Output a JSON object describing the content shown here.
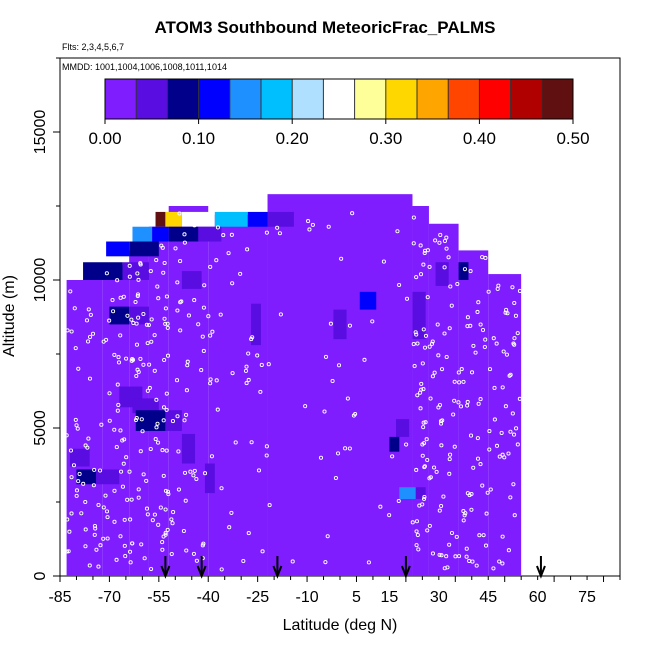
{
  "chart_data": {
    "type": "heatmap",
    "title": "ATOM3 Southbound MeteoricFrac_PALMS",
    "subtitle": "Flts: 2,3,4,5,6,7",
    "annotation": "MMDD: 1001,1004,1006,1008,1011,1014",
    "xlabel": "Latitude (deg N)",
    "ylabel": "Altitude (m)",
    "xlim": [
      -85,
      85
    ],
    "ylim": [
      0,
      17500
    ],
    "x_tick_labels": [
      "-85",
      "-70",
      "-55",
      "-40",
      "-25",
      "-10",
      "5",
      "15",
      "30",
      "45",
      "60",
      "75"
    ],
    "x_tick_values": [
      -85,
      -70,
      -55,
      -40,
      -25,
      -10,
      5,
      15,
      30,
      45,
      60,
      75
    ],
    "y_tick_labels": [
      "0",
      "5000",
      "10000",
      "15000"
    ],
    "y_tick_values": [
      0,
      5000,
      10000,
      15000
    ],
    "colorbar": {
      "range": [
        0,
        0.5
      ],
      "tick_labels": [
        "0.00",
        "0.10",
        "0.20",
        "0.30",
        "0.40",
        "0.50"
      ],
      "tick_values": [
        0,
        0.1,
        0.2,
        0.3,
        0.4,
        0.5
      ],
      "colors": [
        "#7f1dff",
        "#5a0de0",
        "#00008b",
        "#0000ff",
        "#1e90ff",
        "#00bfff",
        "#b0e0ff",
        "#ffffff",
        "#ffff99",
        "#ffd700",
        "#ffa500",
        "#ff4500",
        "#ff0000",
        "#b00000",
        "#601010"
      ]
    },
    "background_value": 0.01,
    "coverage": [
      {
        "lat": [
          -83,
          -72
        ],
        "alt": [
          0,
          10000
        ]
      },
      {
        "lat": [
          -72,
          -64
        ],
        "alt": [
          0,
          10500
        ]
      },
      {
        "lat": [
          -64,
          -58
        ],
        "alt": [
          0,
          11000
        ]
      },
      {
        "lat": [
          -58,
          -52
        ],
        "alt": [
          0,
          11800
        ]
      },
      {
        "lat": [
          -52,
          -40
        ],
        "alt": [
          0,
          12500
        ]
      },
      {
        "lat": [
          -40,
          -22
        ],
        "alt": [
          0,
          12200
        ]
      },
      {
        "lat": [
          -22,
          22
        ],
        "alt": [
          0,
          12900
        ]
      },
      {
        "lat": [
          22,
          27
        ],
        "alt": [
          0,
          12500
        ]
      },
      {
        "lat": [
          27,
          36
        ],
        "alt": [
          0,
          11900
        ]
      },
      {
        "lat": [
          36,
          45
        ],
        "alt": [
          0,
          11000
        ]
      },
      {
        "lat": [
          45,
          55
        ],
        "alt": [
          0,
          10200
        ]
      }
    ],
    "cells": [
      {
        "lat": [
          -56,
          -53
        ],
        "alt": [
          11800,
          12300
        ],
        "value": 0.47
      },
      {
        "lat": [
          -53,
          -48
        ],
        "alt": [
          11800,
          12300
        ],
        "value": 0.3
      },
      {
        "lat": [
          -48,
          -38
        ],
        "alt": [
          11800,
          12300
        ],
        "value": 0.26
      },
      {
        "lat": [
          -38,
          -28
        ],
        "alt": [
          11800,
          12300
        ],
        "value": 0.17
      },
      {
        "lat": [
          -28,
          -22
        ],
        "alt": [
          11800,
          12300
        ],
        "value": 0.1
      },
      {
        "lat": [
          -22,
          -14
        ],
        "alt": [
          11800,
          12300
        ],
        "value": 0.04
      },
      {
        "lat": [
          -63,
          -57
        ],
        "alt": [
          11300,
          11800
        ],
        "value": 0.16
      },
      {
        "lat": [
          -57,
          -52
        ],
        "alt": [
          11300,
          11800
        ],
        "value": 0.12
      },
      {
        "lat": [
          -52,
          -43
        ],
        "alt": [
          11300,
          11800
        ],
        "value": 0.08
      },
      {
        "lat": [
          -43,
          -36
        ],
        "alt": [
          11300,
          11800
        ],
        "value": 0.06
      },
      {
        "lat": [
          -71,
          -64
        ],
        "alt": [
          10800,
          11300
        ],
        "value": 0.12
      },
      {
        "lat": [
          -64,
          -55
        ],
        "alt": [
          10800,
          11300
        ],
        "value": 0.07
      },
      {
        "lat": [
          -78,
          -66
        ],
        "alt": [
          10000,
          10600
        ],
        "value": 0.07
      },
      {
        "lat": [
          -66,
          -58
        ],
        "alt": [
          10000,
          10600
        ],
        "value": 0.05
      },
      {
        "lat": [
          -48,
          -42
        ],
        "alt": [
          9700,
          10300
        ],
        "value": 0.05
      },
      {
        "lat": [
          -70,
          -64
        ],
        "alt": [
          8500,
          9100
        ],
        "value": 0.07
      },
      {
        "lat": [
          -64,
          -58
        ],
        "alt": [
          8500,
          9100
        ],
        "value": 0.05
      },
      {
        "lat": [
          -27,
          -24
        ],
        "alt": [
          7800,
          9200
        ],
        "value": 0.05
      },
      {
        "lat": [
          -2,
          2
        ],
        "alt": [
          8000,
          9000
        ],
        "value": 0.04
      },
      {
        "lat": [
          6,
          11
        ],
        "alt": [
          9000,
          9600
        ],
        "value": 0.12
      },
      {
        "lat": [
          22,
          26
        ],
        "alt": [
          8000,
          9600
        ],
        "value": 0.06
      },
      {
        "lat": [
          29,
          33
        ],
        "alt": [
          9800,
          10600
        ],
        "value": 0.05
      },
      {
        "lat": [
          36,
          39
        ],
        "alt": [
          10000,
          10600
        ],
        "value": 0.07
      },
      {
        "lat": [
          -67,
          -60
        ],
        "alt": [
          5700,
          6400
        ],
        "value": 0.05
      },
      {
        "lat": [
          -63,
          -55
        ],
        "alt": [
          5500,
          6000
        ],
        "value": 0.06
      },
      {
        "lat": [
          -62,
          -53
        ],
        "alt": [
          4900,
          5600
        ],
        "value": 0.07
      },
      {
        "lat": [
          -53,
          -48
        ],
        "alt": [
          4900,
          5600
        ],
        "value": 0.05
      },
      {
        "lat": [
          -82,
          -76
        ],
        "alt": [
          3700,
          4300
        ],
        "value": 0.06
      },
      {
        "lat": [
          -80,
          -74
        ],
        "alt": [
          3100,
          3600
        ],
        "value": 0.07
      },
      {
        "lat": [
          -74,
          -67
        ],
        "alt": [
          3100,
          3600
        ],
        "value": 0.06
      },
      {
        "lat": [
          17,
          21
        ],
        "alt": [
          4700,
          5300
        ],
        "value": 0.04
      },
      {
        "lat": [
          15,
          18
        ],
        "alt": [
          4200,
          4700
        ],
        "value": 0.07
      },
      {
        "lat": [
          18,
          23
        ],
        "alt": [
          2600,
          3000
        ],
        "value": 0.14
      },
      {
        "lat": [
          23,
          26
        ],
        "alt": [
          2600,
          3000
        ],
        "value": 0.06
      },
      {
        "lat": [
          -48,
          -44
        ],
        "alt": [
          3800,
          4800
        ],
        "value": 0.04
      },
      {
        "lat": [
          -41,
          -38
        ],
        "alt": [
          2800,
          3800
        ],
        "value": 0.04
      }
    ],
    "flight_arrows_lat": [
      -53,
      -42,
      -19,
      20,
      61
    ]
  }
}
